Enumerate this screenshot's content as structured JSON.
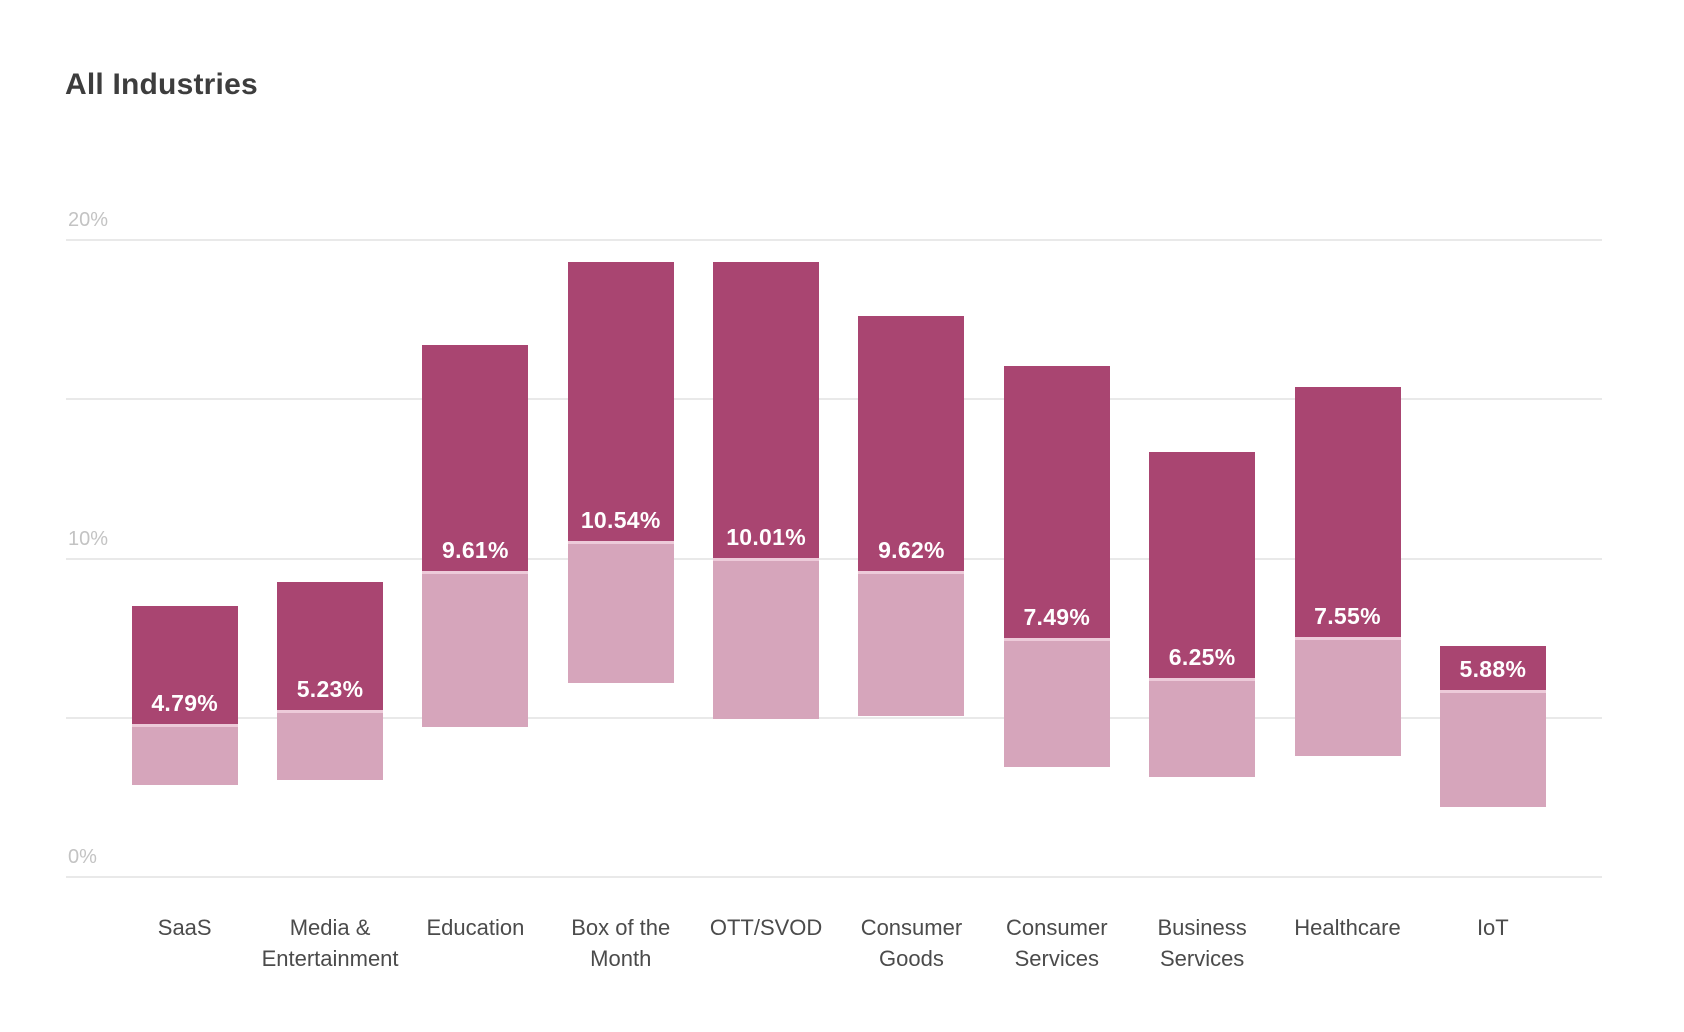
{
  "chart_data": {
    "type": "bar",
    "subtype": "floating-stacked-range",
    "title": "All Industries",
    "xlabel": "",
    "ylabel": "",
    "ylim": [
      0,
      20
    ],
    "grid": "horizontal",
    "legend": "none",
    "yticks": [
      {
        "value": 20,
        "label": "20%"
      },
      {
        "value": 15,
        "label": ""
      },
      {
        "value": 10,
        "label": "10%"
      },
      {
        "value": 5,
        "label": ""
      },
      {
        "value": 0,
        "label": "0%"
      }
    ],
    "series_description": {
      "dark_segment": "median to upper bound (%)",
      "light_segment": "lower bound to median (%)"
    },
    "bars": [
      {
        "category": "SaaS",
        "label_lines": [
          "SaaS"
        ],
        "low": 2.9,
        "median": 4.79,
        "high": 8.5,
        "data_label": "4.79%"
      },
      {
        "category": "Media & Entertainment",
        "label_lines": [
          "Media &",
          "Entertainment"
        ],
        "low": 3.05,
        "median": 5.23,
        "high": 9.25,
        "data_label": "5.23%"
      },
      {
        "category": "Education",
        "label_lines": [
          "Education"
        ],
        "low": 4.7,
        "median": 9.61,
        "high": 16.7,
        "data_label": "9.61%"
      },
      {
        "category": "Box of the Month",
        "label_lines": [
          "Box of the",
          "Month"
        ],
        "low": 6.1,
        "median": 10.54,
        "high": 19.3,
        "data_label": "10.54%"
      },
      {
        "category": "OTT/SVOD",
        "label_lines": [
          "OTT/SVOD"
        ],
        "low": 4.95,
        "median": 10.01,
        "high": 19.3,
        "data_label": "10.01%"
      },
      {
        "category": "Consumer Goods",
        "label_lines": [
          "Consumer",
          "Goods"
        ],
        "low": 5.05,
        "median": 9.62,
        "high": 17.6,
        "data_label": "9.62%"
      },
      {
        "category": "Consumer Services",
        "label_lines": [
          "Consumer",
          "Services"
        ],
        "low": 3.45,
        "median": 7.49,
        "high": 16.05,
        "data_label": "7.49%"
      },
      {
        "category": "Business Services",
        "label_lines": [
          "Business",
          "Services"
        ],
        "low": 3.15,
        "median": 6.25,
        "high": 13.35,
        "data_label": "6.25%"
      },
      {
        "category": "Healthcare",
        "label_lines": [
          "Healthcare"
        ],
        "low": 3.8,
        "median": 7.55,
        "high": 15.4,
        "data_label": "7.55%"
      },
      {
        "category": "IoT",
        "label_lines": [
          "IoT"
        ],
        "low": 2.2,
        "median": 5.88,
        "high": 7.26,
        "data_label": "5.88%"
      }
    ]
  },
  "colors": {
    "background": "#ffffff",
    "bar_dark": "#a94571",
    "bar_light": "#d6a5bb",
    "bar_separator": "#edcad9",
    "gridline": "#e9e9e9",
    "title_text": "#3d3d3d",
    "tick_text": "#c3c3c3",
    "category_text": "#4b4b4b",
    "data_label_text": "#ffffff"
  }
}
